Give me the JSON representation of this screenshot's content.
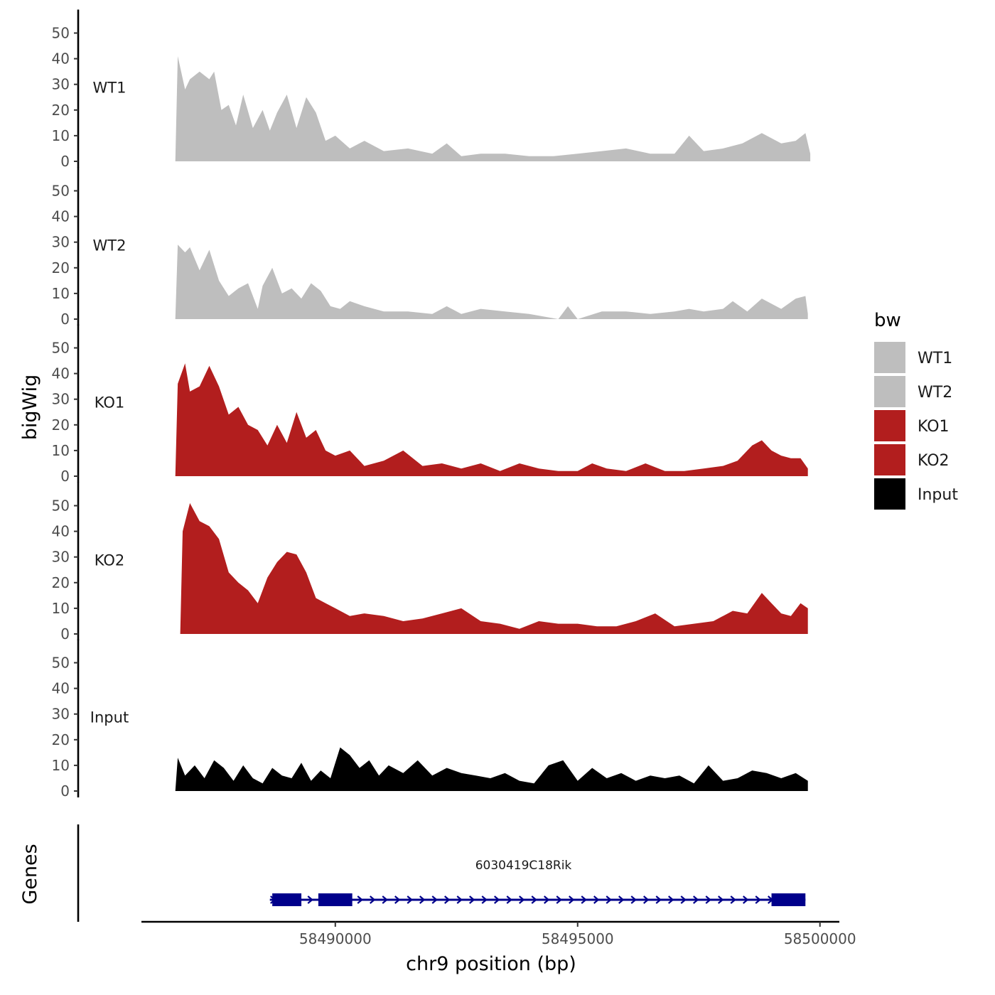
{
  "chart_data": {
    "type": "area",
    "y_axis_title": "bigWig",
    "x_axis_title": "chr9 position (bp)",
    "genes_axis_title": "Genes",
    "ylim": [
      0,
      55
    ],
    "y_ticks": [
      0,
      10,
      20,
      30,
      40,
      50
    ],
    "y_tick_labels": [
      "0",
      "10",
      "20",
      "30",
      "40",
      "50"
    ],
    "xlim": [
      58486000,
      58500400
    ],
    "x_ticks": [
      58490000,
      58495000,
      58500000
    ],
    "x_tick_labels": [
      "58490000",
      "58495000",
      "58500000"
    ],
    "grid": false,
    "legend": {
      "title": "bw",
      "position": "right",
      "entries": [
        {
          "label": "WT1",
          "color": "#bebebe"
        },
        {
          "label": "WT2",
          "color": "#bebebe"
        },
        {
          "label": "KO1",
          "color": "#b21e1e"
        },
        {
          "label": "KO2",
          "color": "#b21e1e"
        },
        {
          "label": "Input",
          "color": "#000000"
        }
      ]
    },
    "series": [
      {
        "name": "WT1",
        "color": "#bebebe",
        "x": [
          58486700,
          58486750,
          58486900,
          58487000,
          58487200,
          58487400,
          58487500,
          58487650,
          58487800,
          58487950,
          58488100,
          58488300,
          58488500,
          58488650,
          58488800,
          58489000,
          58489200,
          58489400,
          58489600,
          58489800,
          58490000,
          58490300,
          58490600,
          58491000,
          58491500,
          58492000,
          58492300,
          58492600,
          58493000,
          58493500,
          58494000,
          58494500,
          58495000,
          58495500,
          58496000,
          58496500,
          58497000,
          58497300,
          58497600,
          58498000,
          58498400,
          58498800,
          58499200,
          58499500,
          58499700,
          58499800
        ],
        "values": [
          0,
          41,
          28,
          32,
          35,
          32,
          35,
          20,
          22,
          14,
          26,
          13,
          20,
          12,
          19,
          26,
          13,
          25,
          19,
          8,
          10,
          5,
          8,
          4,
          5,
          3,
          7,
          2,
          3,
          3,
          2,
          2,
          3,
          4,
          5,
          3,
          3,
          10,
          4,
          5,
          7,
          11,
          7,
          8,
          11,
          3
        ]
      },
      {
        "name": "WT2",
        "color": "#bebebe",
        "x": [
          58486700,
          58486750,
          58486900,
          58487000,
          58487200,
          58487400,
          58487600,
          58487800,
          58488000,
          58488200,
          58488400,
          58488500,
          58488700,
          58488900,
          58489100,
          58489300,
          58489500,
          58489700,
          58489900,
          58490100,
          58490300,
          58490600,
          58491000,
          58491500,
          58492000,
          58492300,
          58492600,
          58493000,
          58493500,
          58494000,
          58494300,
          58494600,
          58494800,
          58495000,
          58495500,
          58496000,
          58496500,
          58497000,
          58497300,
          58497600,
          58498000,
          58498200,
          58498500,
          58498800,
          58499200,
          58499500,
          58499700,
          58499750
        ],
        "values": [
          0,
          29,
          26,
          28,
          19,
          27,
          15,
          9,
          12,
          14,
          4,
          13,
          20,
          10,
          12,
          8,
          14,
          11,
          5,
          4,
          7,
          5,
          3,
          3,
          2,
          5,
          2,
          4,
          3,
          2,
          1,
          0,
          5,
          0,
          3,
          3,
          2,
          3,
          4,
          3,
          4,
          7,
          3,
          8,
          4,
          8,
          9,
          2
        ]
      },
      {
        "name": "KO1",
        "color": "#b21e1e",
        "x": [
          58486700,
          58486750,
          58486900,
          58487000,
          58487200,
          58487400,
          58487600,
          58487800,
          58488000,
          58488200,
          58488400,
          58488600,
          58488800,
          58489000,
          58489200,
          58489400,
          58489600,
          58489800,
          58490000,
          58490300,
          58490600,
          58491000,
          58491400,
          58491800,
          58492200,
          58492600,
          58493000,
          58493400,
          58493800,
          58494200,
          58494600,
          58495000,
          58495300,
          58495600,
          58496000,
          58496400,
          58496800,
          58497200,
          58497600,
          58498000,
          58498300,
          58498600,
          58498800,
          58499000,
          58499200,
          58499400,
          58499600,
          58499750
        ],
        "values": [
          0,
          36,
          44,
          33,
          35,
          43,
          35,
          24,
          27,
          20,
          18,
          12,
          20,
          13,
          25,
          15,
          18,
          10,
          8,
          10,
          4,
          6,
          10,
          4,
          5,
          3,
          5,
          2,
          5,
          3,
          2,
          2,
          5,
          3,
          2,
          5,
          2,
          2,
          3,
          4,
          6,
          12,
          14,
          10,
          8,
          7,
          7,
          3
        ]
      },
      {
        "name": "KO2",
        "color": "#b21e1e",
        "x": [
          58486800,
          58486850,
          58487000,
          58487200,
          58487400,
          58487600,
          58487800,
          58488000,
          58488200,
          58488400,
          58488600,
          58488800,
          58489000,
          58489200,
          58489400,
          58489600,
          58489800,
          58490000,
          58490300,
          58490600,
          58491000,
          58491400,
          58491800,
          58492200,
          58492600,
          58493000,
          58493400,
          58493800,
          58494200,
          58494600,
          58495000,
          58495400,
          58495800,
          58496200,
          58496600,
          58497000,
          58497400,
          58497800,
          58498200,
          58498500,
          58498800,
          58499000,
          58499200,
          58499400,
          58499600,
          58499750
        ],
        "values": [
          0,
          40,
          51,
          44,
          42,
          37,
          24,
          20,
          17,
          12,
          22,
          28,
          32,
          31,
          24,
          14,
          12,
          10,
          7,
          8,
          7,
          5,
          6,
          8,
          10,
          5,
          4,
          2,
          5,
          4,
          4,
          3,
          3,
          5,
          8,
          3,
          4,
          5,
          9,
          8,
          16,
          12,
          8,
          7,
          12,
          10
        ]
      },
      {
        "name": "Input",
        "color": "#000000",
        "x": [
          58486700,
          58486750,
          58486900,
          58487100,
          58487300,
          58487500,
          58487700,
          58487900,
          58488100,
          58488300,
          58488500,
          58488700,
          58488900,
          58489100,
          58489300,
          58489500,
          58489700,
          58489900,
          58490100,
          58490300,
          58490500,
          58490700,
          58490900,
          58491100,
          58491400,
          58491700,
          58492000,
          58492300,
          58492600,
          58492900,
          58493200,
          58493500,
          58493800,
          58494100,
          58494400,
          58494700,
          58495000,
          58495300,
          58495600,
          58495900,
          58496200,
          58496500,
          58496800,
          58497100,
          58497400,
          58497700,
          58498000,
          58498300,
          58498600,
          58498900,
          58499200,
          58499500,
          58499750
        ],
        "values": [
          0,
          13,
          6,
          10,
          5,
          12,
          9,
          4,
          10,
          5,
          3,
          9,
          6,
          5,
          11,
          4,
          8,
          5,
          17,
          14,
          9,
          12,
          6,
          10,
          7,
          12,
          6,
          9,
          7,
          6,
          5,
          7,
          4,
          3,
          10,
          12,
          4,
          9,
          5,
          7,
          4,
          6,
          5,
          6,
          3,
          10,
          4,
          5,
          8,
          7,
          5,
          7,
          4
        ]
      }
    ],
    "track_labels": [
      "WT1",
      "WT2",
      "KO1",
      "KO2",
      "Input"
    ],
    "gene_track": {
      "gene_name": "6030419C18Rik",
      "color": "#00008b",
      "start": 58488650,
      "end": 58499700,
      "strand": "+",
      "exons": [
        [
          58488700,
          58489300
        ],
        [
          58489650,
          58490350
        ],
        [
          58499000,
          58499700
        ]
      ]
    }
  }
}
